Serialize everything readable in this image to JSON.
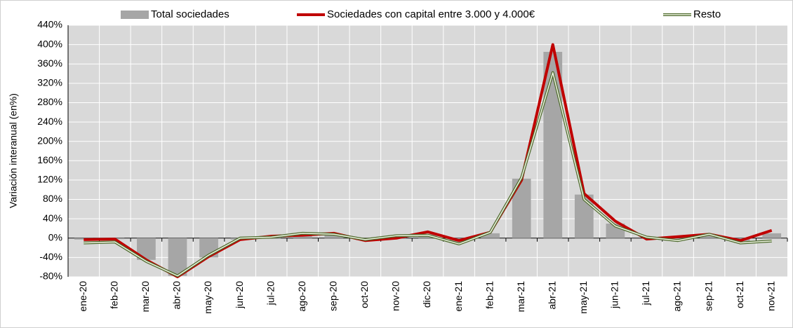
{
  "chart_data": {
    "type": "bar_line",
    "y_label": "Variación interanual (en%)",
    "categories": [
      "ene-20",
      "feb-20",
      "mar-20",
      "abr-20",
      "may-20",
      "jun-20",
      "jul-20",
      "ago-20",
      "sep-20",
      "oct-20",
      "nov-20",
      "dic-20",
      "ene-21",
      "feb-21",
      "mar-21",
      "abr-21",
      "may-21",
      "jun-21",
      "jul-21",
      "ago-21",
      "sep-21",
      "oct-21",
      "nov-21"
    ],
    "series": [
      {
        "name": "Total sociedades",
        "kind": "bar",
        "color": "#a6a6a6",
        "values": [
          -3,
          -2,
          -45,
          -78,
          -40,
          -3,
          2,
          8,
          8,
          -4,
          3,
          8,
          -8,
          10,
          123,
          385,
          90,
          30,
          0,
          -2,
          7,
          -6,
          10
        ]
      },
      {
        "name": "Sociedades con capital entre 3.000 y 4.000€",
        "kind": "line",
        "color": "#c00000",
        "values": [
          -3,
          -2,
          -45,
          -80,
          -38,
          -3,
          4,
          6,
          10,
          -5,
          0,
          13,
          -5,
          12,
          120,
          400,
          92,
          35,
          -2,
          3,
          8,
          -5,
          16
        ]
      },
      {
        "name": "Resto",
        "kind": "double-line",
        "color": "#4e6b2e",
        "values": [
          -10,
          -8,
          -48,
          -78,
          -35,
          0,
          2,
          10,
          8,
          -3,
          5,
          6,
          -12,
          12,
          125,
          342,
          80,
          25,
          2,
          -5,
          8,
          -10,
          -6
        ]
      }
    ],
    "ylim": [
      -80,
      440
    ],
    "yticks": [
      {
        "value": -80,
        "label": "-80%"
      },
      {
        "value": -40,
        "label": "-40%"
      },
      {
        "value": 0,
        "label": "0%"
      },
      {
        "value": 40,
        "label": "40%"
      },
      {
        "value": 80,
        "label": "80%"
      },
      {
        "value": 120,
        "label": "120%"
      },
      {
        "value": 160,
        "label": "160%"
      },
      {
        "value": 200,
        "label": "200%"
      },
      {
        "value": 240,
        "label": "240%"
      },
      {
        "value": 280,
        "label": "280%"
      },
      {
        "value": 320,
        "label": "320%"
      },
      {
        "value": 360,
        "label": "360%"
      },
      {
        "value": 400,
        "label": "400%"
      },
      {
        "value": 440,
        "label": "440%"
      }
    ],
    "grid": true
  }
}
